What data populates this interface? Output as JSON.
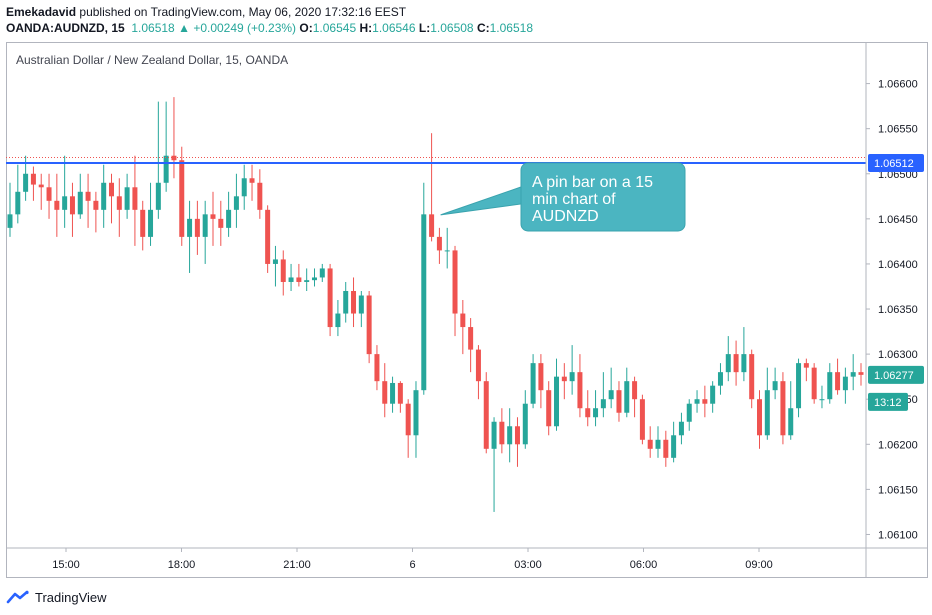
{
  "header": {
    "user": "Emekadavid",
    "published": "published on TradingView.com, May 06, 2020 17:32:16 EEST",
    "symbol": "OANDA:AUDNZD, 15",
    "last": "1.06518",
    "change": "+0.00249 (+0.23%)",
    "o_label": "O:",
    "o": "1.06545",
    "h_label": "H:",
    "h": "1.06546",
    "l_label": "L:",
    "l": "1.06508",
    "c_label": "C:",
    "c": "1.06518",
    "arrow": "▲"
  },
  "pair_title": "Australian Dollar / New Zealand Dollar, 15, OANDA",
  "annotation": {
    "text_lines": [
      "A pin bar on a 15",
      "min chart of",
      "AUDNZD"
    ]
  },
  "footer": {
    "brand": "TradingView",
    "icon": "tradingview-logo-icon"
  },
  "colors": {
    "up": "#26a69a",
    "down": "#ef5350",
    "line": "#2962ff",
    "callout": "#4bb5c1",
    "label_bg": "#26a69a"
  },
  "chart_data": {
    "type": "candlestick",
    "y_ticks": [
      "1.06600",
      "1.06550",
      "1.06500",
      "1.06450",
      "1.06400",
      "1.06350",
      "1.06300",
      "1.06250",
      "1.06200",
      "1.06150",
      "1.06100"
    ],
    "ylim": [
      1.06085,
      1.06645
    ],
    "x_ticks": [
      "15:00",
      "18:00",
      "21:00",
      "6",
      "03:00",
      "06:00",
      "09:00"
    ],
    "horizontal_line": 1.06512,
    "price_labels": [
      {
        "text": "1.06512",
        "value": 1.06512,
        "kind": "line"
      },
      {
        "text": "1.06277",
        "value": 1.06277,
        "kind": "price"
      },
      {
        "text": "13:12",
        "value": 1.06247,
        "kind": "timer"
      }
    ],
    "candles": [
      [
        1.0644,
        1.06455,
        1.0649,
        1.0643
      ],
      [
        1.06455,
        1.0648,
        1.0651,
        1.06445
      ],
      [
        1.0648,
        1.065,
        1.0652,
        1.0647
      ],
      [
        1.065,
        1.06488,
        1.06508,
        1.0647
      ],
      [
        1.06488,
        1.06485,
        1.065,
        1.0646
      ],
      [
        1.06485,
        1.0647,
        1.065,
        1.0645
      ],
      [
        1.0647,
        1.0646,
        1.065,
        1.0643
      ],
      [
        1.0646,
        1.06475,
        1.0652,
        1.0644
      ],
      [
        1.06475,
        1.06455,
        1.0649,
        1.0643
      ],
      [
        1.06455,
        1.0648,
        1.065,
        1.0645
      ],
      [
        1.0648,
        1.0647,
        1.065,
        1.0644
      ],
      [
        1.0647,
        1.0646,
        1.0648,
        1.06435
      ],
      [
        1.0646,
        1.0649,
        1.0651,
        1.0644
      ],
      [
        1.0649,
        1.06475,
        1.065,
        1.06445
      ],
      [
        1.06475,
        1.0646,
        1.06495,
        1.0643
      ],
      [
        1.0646,
        1.06485,
        1.065,
        1.0645
      ],
      [
        1.06485,
        1.0646,
        1.0652,
        1.0642
      ],
      [
        1.0646,
        1.0643,
        1.0647,
        1.06415
      ],
      [
        1.0643,
        1.0646,
        1.0649,
        1.0642
      ],
      [
        1.0646,
        1.0649,
        1.0658,
        1.0645
      ],
      [
        1.0649,
        1.0652,
        1.0658,
        1.0648
      ],
      [
        1.0652,
        1.06515,
        1.06585,
        1.06495
      ],
      [
        1.06515,
        1.0643,
        1.0653,
        1.0642
      ],
      [
        1.0643,
        1.0645,
        1.0647,
        1.0639
      ],
      [
        1.0645,
        1.0643,
        1.0647,
        1.0641
      ],
      [
        1.0643,
        1.06455,
        1.0647,
        1.064
      ],
      [
        1.06455,
        1.0645,
        1.0648,
        1.0642
      ],
      [
        1.0645,
        1.0644,
        1.0647,
        1.0642
      ],
      [
        1.0644,
        1.0646,
        1.0648,
        1.0643
      ],
      [
        1.0646,
        1.06475,
        1.065,
        1.0644
      ],
      [
        1.06475,
        1.06495,
        1.0651,
        1.0646
      ],
      [
        1.06495,
        1.0649,
        1.0651,
        1.0647
      ],
      [
        1.0649,
        1.0646,
        1.06505,
        1.0645
      ],
      [
        1.0646,
        1.064,
        1.06465,
        1.0639
      ],
      [
        1.064,
        1.06405,
        1.0642,
        1.06375
      ],
      [
        1.06405,
        1.0638,
        1.06415,
        1.06365
      ],
      [
        1.0638,
        1.06385,
        1.064,
        1.0637
      ],
      [
        1.06385,
        1.0638,
        1.064,
        1.06375
      ],
      [
        1.0638,
        1.06382,
        1.06395,
        1.0637
      ],
      [
        1.06382,
        1.06385,
        1.06395,
        1.06375
      ],
      [
        1.06385,
        1.06395,
        1.064,
        1.0638
      ],
      [
        1.06395,
        1.0633,
        1.064,
        1.0632
      ],
      [
        1.0633,
        1.06345,
        1.0636,
        1.0632
      ],
      [
        1.06345,
        1.0637,
        1.0638,
        1.06335
      ],
      [
        1.0637,
        1.06345,
        1.06385,
        1.0633
      ],
      [
        1.06345,
        1.06365,
        1.0637,
        1.0633
      ],
      [
        1.06365,
        1.063,
        1.0637,
        1.0629
      ],
      [
        1.063,
        1.0627,
        1.0631,
        1.0626
      ],
      [
        1.0627,
        1.06245,
        1.0629,
        1.0623
      ],
      [
        1.06245,
        1.06268,
        1.06275,
        1.06235
      ],
      [
        1.06268,
        1.06245,
        1.0627,
        1.06235
      ],
      [
        1.06245,
        1.0621,
        1.0625,
        1.06185
      ],
      [
        1.0621,
        1.0626,
        1.0627,
        1.06185
      ],
      [
        1.0626,
        1.06455,
        1.0649,
        1.06255
      ],
      [
        1.06455,
        1.0643,
        1.06545,
        1.06425
      ],
      [
        1.0643,
        1.06415,
        1.0644,
        1.064
      ],
      [
        1.06415,
        1.06415,
        1.0644,
        1.06395
      ],
      [
        1.06415,
        1.06345,
        1.0642,
        1.0632
      ],
      [
        1.06345,
        1.0633,
        1.0636,
        1.063
      ],
      [
        1.0633,
        1.06305,
        1.0634,
        1.0628
      ],
      [
        1.06305,
        1.0627,
        1.0631,
        1.0625
      ],
      [
        1.0627,
        1.06195,
        1.0628,
        1.0619
      ],
      [
        1.06195,
        1.06225,
        1.0623,
        1.06125
      ],
      [
        1.06225,
        1.062,
        1.0624,
        1.0619
      ],
      [
        1.062,
        1.0622,
        1.0624,
        1.0618
      ],
      [
        1.0622,
        1.062,
        1.0623,
        1.06175
      ],
      [
        1.062,
        1.06245,
        1.0626,
        1.06195
      ],
      [
        1.06245,
        1.0629,
        1.063,
        1.0624
      ],
      [
        1.0629,
        1.0626,
        1.063,
        1.0624
      ],
      [
        1.0626,
        1.0622,
        1.0627,
        1.0621
      ],
      [
        1.0622,
        1.06275,
        1.06295,
        1.06215
      ],
      [
        1.06275,
        1.0627,
        1.0629,
        1.0625
      ],
      [
        1.0627,
        1.0628,
        1.0631,
        1.06255
      ],
      [
        1.0628,
        1.0624,
        1.063,
        1.0623
      ],
      [
        1.0624,
        1.0623,
        1.0626,
        1.0622
      ],
      [
        1.0623,
        1.0624,
        1.0626,
        1.0622
      ],
      [
        1.0624,
        1.0625,
        1.0628,
        1.0623
      ],
      [
        1.0625,
        1.0626,
        1.06285,
        1.0624
      ],
      [
        1.0626,
        1.06235,
        1.0627,
        1.06225
      ],
      [
        1.06235,
        1.0627,
        1.06285,
        1.0623
      ],
      [
        1.0627,
        1.0625,
        1.06275,
        1.0623
      ],
      [
        1.0625,
        1.06205,
        1.06255,
        1.062
      ],
      [
        1.06205,
        1.06195,
        1.0622,
        1.06185
      ],
      [
        1.06195,
        1.06205,
        1.0622,
        1.06185
      ],
      [
        1.06205,
        1.06185,
        1.06215,
        1.06175
      ],
      [
        1.06185,
        1.0621,
        1.06225,
        1.0618
      ],
      [
        1.0621,
        1.06225,
        1.06235,
        1.062
      ],
      [
        1.06225,
        1.06245,
        1.0625,
        1.06215
      ],
      [
        1.06245,
        1.0625,
        1.0626,
        1.06235
      ],
      [
        1.0625,
        1.06245,
        1.06265,
        1.0623
      ],
      [
        1.06245,
        1.06265,
        1.0627,
        1.06235
      ],
      [
        1.06265,
        1.0628,
        1.0629,
        1.06255
      ],
      [
        1.0628,
        1.063,
        1.0632,
        1.0627
      ],
      [
        1.063,
        1.0628,
        1.06315,
        1.06265
      ],
      [
        1.0628,
        1.063,
        1.0633,
        1.0627
      ],
      [
        1.063,
        1.0625,
        1.06305,
        1.0624
      ],
      [
        1.0625,
        1.0621,
        1.0626,
        1.06195
      ],
      [
        1.0621,
        1.0626,
        1.06285,
        1.06205
      ],
      [
        1.0626,
        1.0627,
        1.06285,
        1.0625
      ],
      [
        1.0627,
        1.0621,
        1.0628,
        1.062
      ],
      [
        1.0621,
        1.0624,
        1.0627,
        1.06205
      ],
      [
        1.0624,
        1.0629,
        1.06295,
        1.0623
      ],
      [
        1.0629,
        1.06285,
        1.06295,
        1.0627
      ],
      [
        1.06285,
        1.0625,
        1.0629,
        1.06245
      ],
      [
        1.0625,
        1.0625,
        1.06265,
        1.0624
      ],
      [
        1.0625,
        1.0628,
        1.0629,
        1.06245
      ],
      [
        1.0628,
        1.0626,
        1.06295,
        1.06255
      ],
      [
        1.0626,
        1.06275,
        1.06285,
        1.06245
      ],
      [
        1.06275,
        1.0628,
        1.063,
        1.0626
      ],
      [
        1.0628,
        1.06277,
        1.0629,
        1.06265
      ]
    ]
  }
}
